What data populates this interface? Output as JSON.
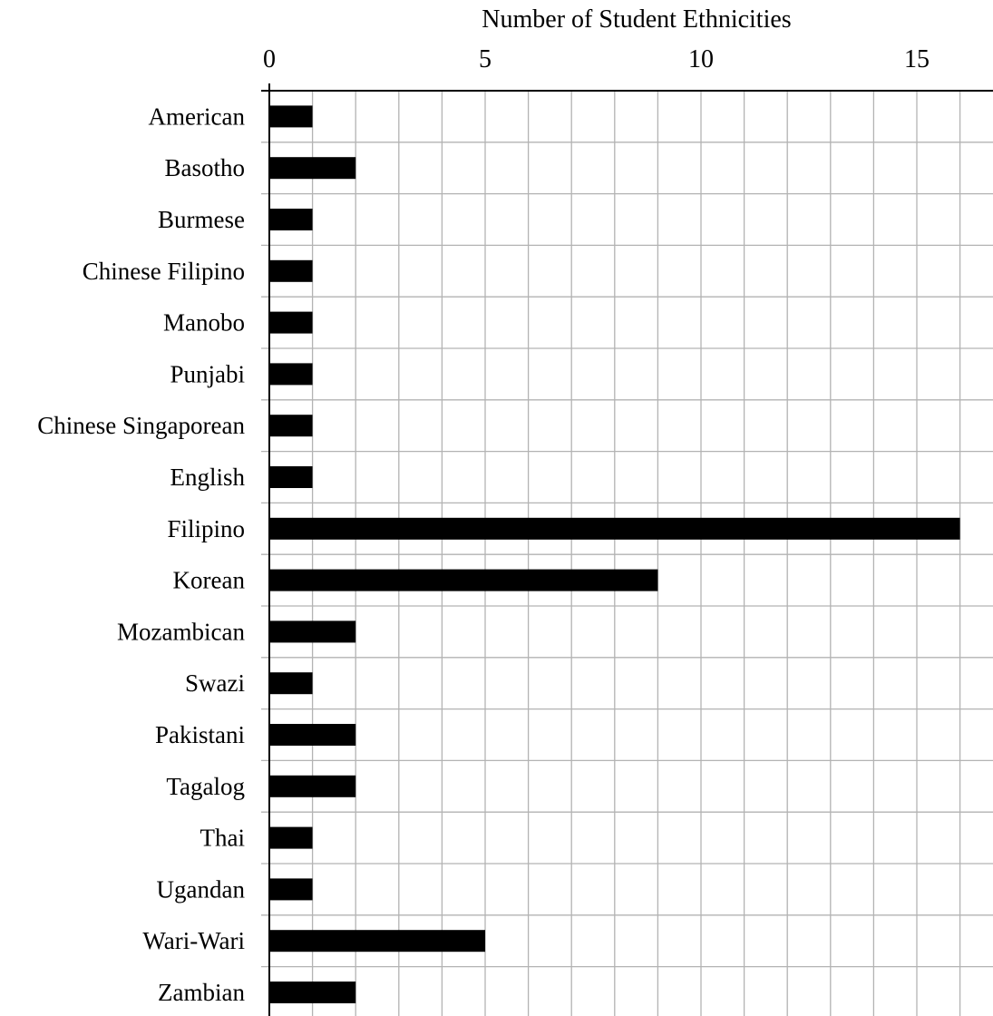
{
  "chart_data": {
    "type": "bar",
    "orientation": "horizontal",
    "xlabel": "Number of Student Ethnicities",
    "xlabel_position": "top",
    "xlim": [
      0,
      16.5
    ],
    "xticks": [
      0,
      5,
      10,
      15
    ],
    "grid": true,
    "bar_color": "#000000",
    "categories": [
      "American",
      "Basotho",
      "Burmese",
      "Chinese Filipino",
      "Manobo",
      "Punjabi",
      "Chinese Singaporean",
      "English",
      "Filipino",
      "Korean",
      "Mozambican",
      "Swazi",
      "Pakistani",
      "Tagalog",
      "Thai",
      "Ugandan",
      "Wari-Wari",
      "Zambian"
    ],
    "values": [
      1,
      2,
      1,
      1,
      1,
      1,
      1,
      1,
      16,
      9,
      2,
      1,
      2,
      2,
      1,
      1,
      5,
      2
    ]
  }
}
